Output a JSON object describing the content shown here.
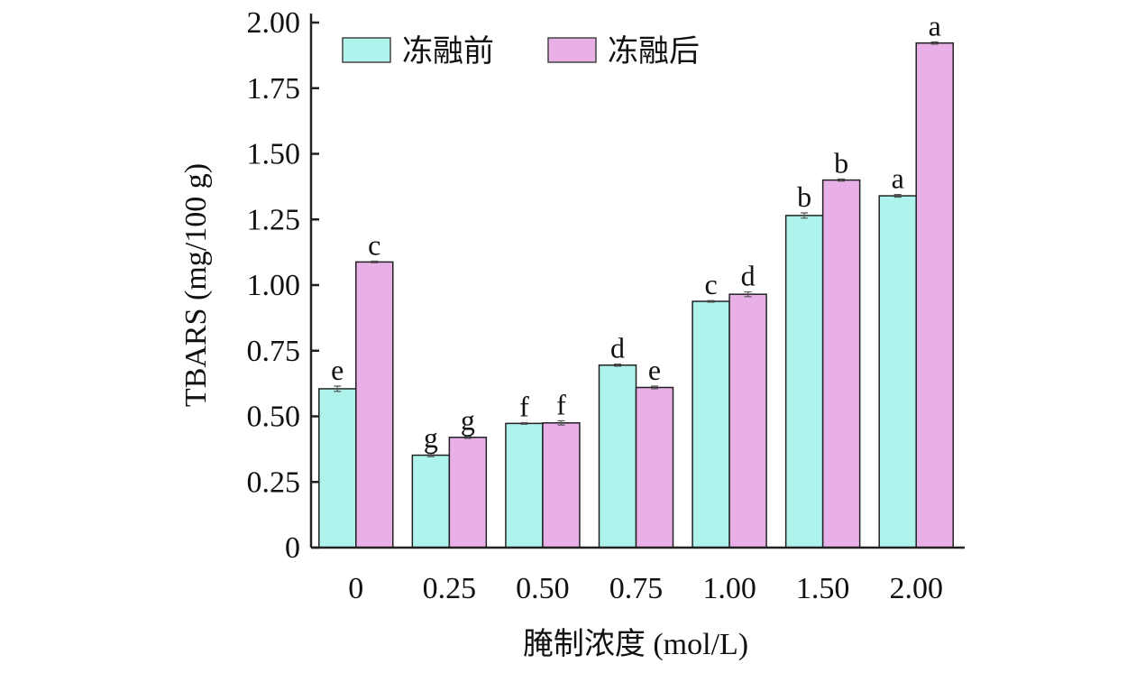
{
  "chart_data": {
    "type": "bar",
    "title": "",
    "xlabel": "腌制浓度 (mol/L)",
    "ylabel": "TBARS (mg/100 g)",
    "ylim": [
      0,
      2.0
    ],
    "yticks": [
      "0",
      "0.25",
      "0.50",
      "0.75",
      "1.00",
      "1.25",
      "1.50",
      "1.75",
      "2.00"
    ],
    "categories": [
      "0",
      "0.25",
      "0.50",
      "0.75",
      "1.00",
      "1.50",
      "2.00"
    ],
    "legend_position": "top-left",
    "series": [
      {
        "name": "冻融前",
        "color": "#aef3ec",
        "values": [
          0.605,
          0.352,
          0.473,
          0.695,
          0.938,
          1.265,
          1.34
        ],
        "errors": [
          0.01,
          0.006,
          0.003,
          0.004,
          0.003,
          0.01,
          0.005
        ],
        "letters": [
          "e",
          "g",
          "f",
          "d",
          "c",
          "b",
          "a"
        ]
      },
      {
        "name": "冻融后",
        "color": "#e9b0e8",
        "values": [
          1.088,
          0.42,
          0.475,
          0.61,
          0.965,
          1.4,
          1.922
        ],
        "errors": [
          0.003,
          0.004,
          0.008,
          0.005,
          0.009,
          0.004,
          0.004
        ],
        "letters": [
          "c",
          "g",
          "f",
          "e",
          "d",
          "b",
          "a"
        ]
      }
    ]
  }
}
